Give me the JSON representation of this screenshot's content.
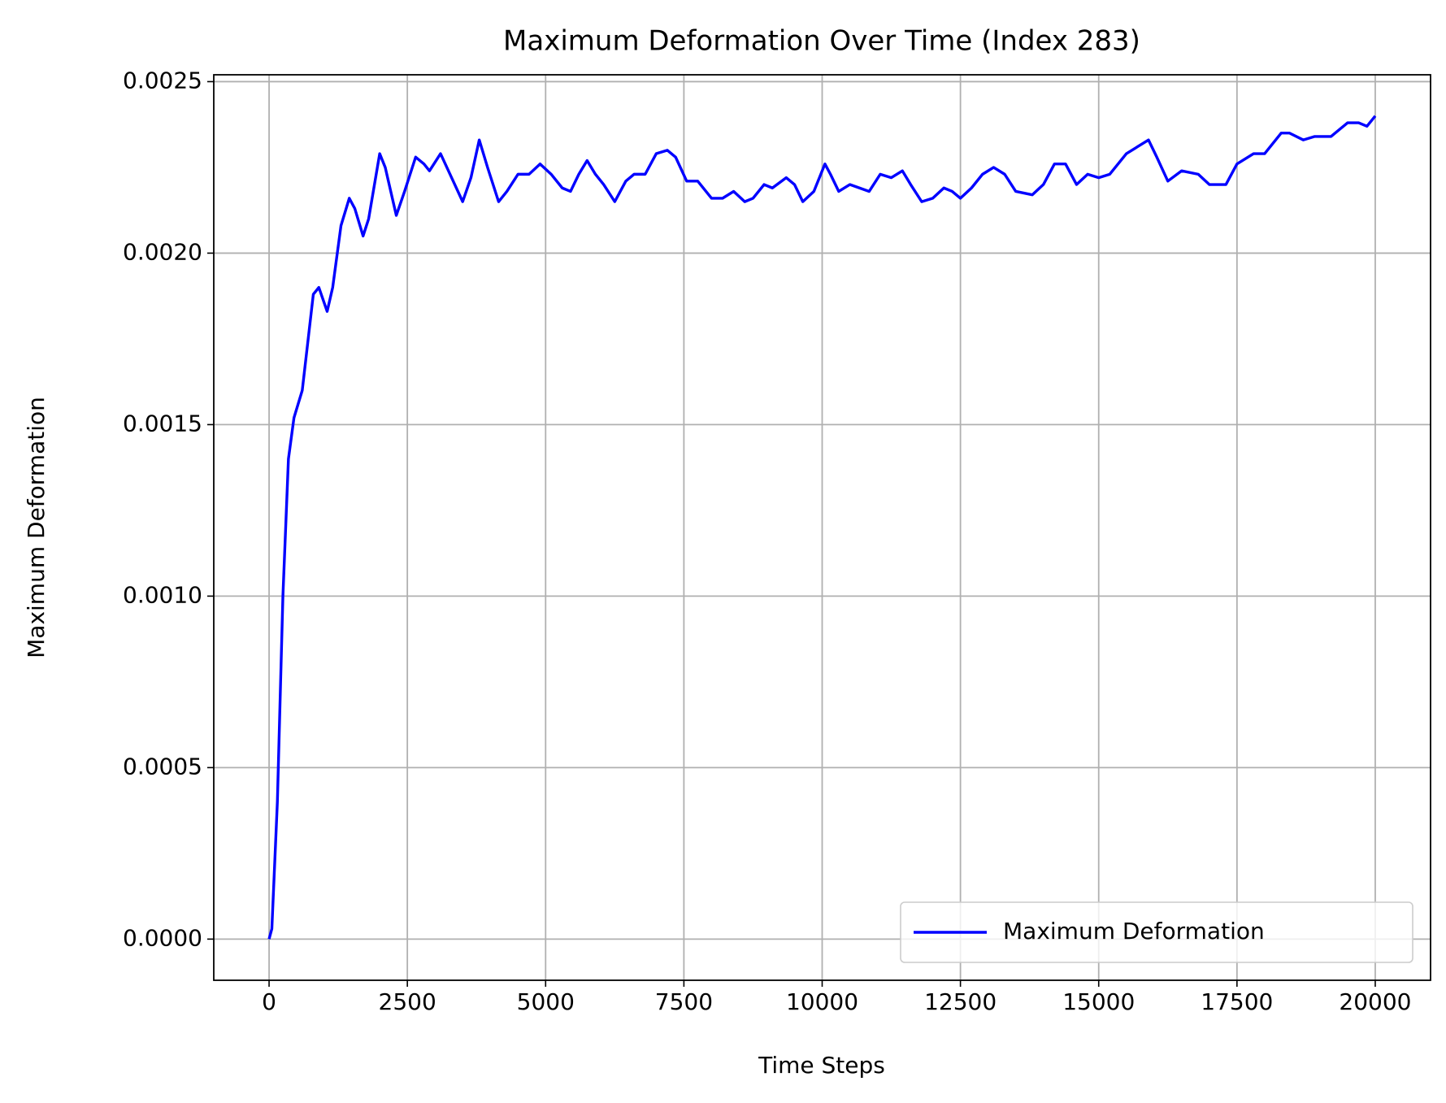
{
  "chart_data": {
    "type": "line",
    "title": "Maximum Deformation Over Time (Index 283)",
    "x_label": "Time Steps",
    "y_label": "Maximum Deformation",
    "x": [
      0,
      50,
      150,
      250,
      350,
      450,
      600,
      800,
      900,
      1050,
      1150,
      1300,
      1450,
      1550,
      1700,
      1800,
      2000,
      2100,
      2300,
      2450,
      2650,
      2800,
      2900,
      3100,
      3300,
      3500,
      3650,
      3800,
      3950,
      4150,
      4300,
      4500,
      4700,
      4900,
      5100,
      5300,
      5450,
      5600,
      5750,
      5900,
      6050,
      6250,
      6450,
      6600,
      6800,
      7000,
      7200,
      7350,
      7550,
      7750,
      8000,
      8200,
      8400,
      8600,
      8750,
      8950,
      9100,
      9350,
      9500,
      9650,
      9850,
      10050,
      10150,
      10300,
      10500,
      10850,
      11050,
      11250,
      11450,
      11600,
      11800,
      12000,
      12200,
      12350,
      12500,
      12700,
      12900,
      13100,
      13300,
      13500,
      13800,
      14000,
      14200,
      14400,
      14600,
      14800,
      15000,
      15200,
      15500,
      15700,
      15900,
      16050,
      16250,
      16500,
      16800,
      17000,
      17300,
      17500,
      17800,
      18000,
      18300,
      18450,
      18700,
      18900,
      19200,
      19500,
      19700,
      19850,
      20000
    ],
    "series": [
      {
        "name": "Maximum Deformation",
        "color": "#0000ff",
        "values": [
          0,
          3e-05,
          0.0004,
          0.001,
          0.0014,
          0.00152,
          0.0016,
          0.00188,
          0.0019,
          0.00183,
          0.0019,
          0.00208,
          0.00216,
          0.00213,
          0.00205,
          0.0021,
          0.00229,
          0.00225,
          0.00211,
          0.00218,
          0.00228,
          0.00226,
          0.00224,
          0.00229,
          0.00222,
          0.00215,
          0.00222,
          0.00233,
          0.00225,
          0.00215,
          0.00218,
          0.00223,
          0.00223,
          0.00226,
          0.00223,
          0.00219,
          0.00218,
          0.00223,
          0.00227,
          0.00223,
          0.0022,
          0.00215,
          0.00221,
          0.00223,
          0.00223,
          0.00229,
          0.0023,
          0.00228,
          0.00221,
          0.00221,
          0.00216,
          0.00216,
          0.00218,
          0.00215,
          0.00216,
          0.0022,
          0.00219,
          0.00222,
          0.0022,
          0.00215,
          0.00218,
          0.00226,
          0.00223,
          0.00218,
          0.0022,
          0.00218,
          0.00223,
          0.00222,
          0.00224,
          0.0022,
          0.00215,
          0.00216,
          0.00219,
          0.00218,
          0.00216,
          0.00219,
          0.00223,
          0.00225,
          0.00223,
          0.00218,
          0.00217,
          0.0022,
          0.00226,
          0.00226,
          0.0022,
          0.00223,
          0.00222,
          0.00223,
          0.00229,
          0.00231,
          0.00233,
          0.00228,
          0.00221,
          0.00224,
          0.00223,
          0.0022,
          0.0022,
          0.00226,
          0.00229,
          0.00229,
          0.00235,
          0.00235,
          0.00233,
          0.00234,
          0.00234,
          0.00238,
          0.00238,
          0.00237,
          0.0024
        ]
      }
    ],
    "xlim": [
      -1000,
      21000
    ],
    "xticks": [
      0,
      2500,
      5000,
      7500,
      10000,
      12500,
      15000,
      17500,
      20000
    ],
    "ylim": [
      -0.00012,
      0.00252
    ],
    "yticks": [
      {
        "value": 0,
        "label": "0.0000"
      },
      0.0005,
      {
        "value": 0.001,
        "label": "0.0010"
      },
      0.0015,
      {
        "value": 0.002,
        "label": "0.0020"
      },
      0.0025
    ],
    "grid": true,
    "legend": "lower right"
  }
}
